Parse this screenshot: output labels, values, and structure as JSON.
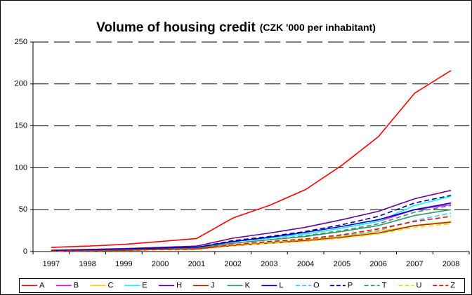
{
  "chart_data": {
    "type": "line",
    "title": "Volume of housing credit",
    "subtitle": "(CZK '000 per inhabitant)",
    "categories": [
      "1997",
      "1998",
      "1999",
      "2000",
      "2001",
      "2002",
      "2003",
      "2004",
      "2005",
      "2006",
      "2007",
      "2008"
    ],
    "ylim": [
      0,
      250
    ],
    "yticks": [
      0,
      50,
      100,
      150,
      200,
      250
    ],
    "grid": true,
    "legend": "bottom",
    "series": [
      {
        "name": "A",
        "color": "#ff0000",
        "style": "solid",
        "values": [
          5,
          6.5,
          8.5,
          12,
          15.5,
          40,
          55,
          74,
          103,
          137,
          189,
          216
        ]
      },
      {
        "name": "B",
        "color": "#ff00ff",
        "style": "solid",
        "values": [
          1,
          2,
          2.5,
          4,
          5,
          12,
          16,
          21,
          28,
          36,
          50,
          56
        ]
      },
      {
        "name": "C",
        "color": "#ffcc00",
        "style": "solid",
        "values": [
          0.5,
          1,
          1.5,
          2.5,
          3,
          8,
          11,
          14,
          18,
          24,
          31,
          36
        ]
      },
      {
        "name": "E",
        "color": "#00ffff",
        "style": "solid",
        "values": [
          1,
          2,
          3,
          4,
          5,
          12,
          16,
          21,
          28,
          36,
          55,
          66
        ]
      },
      {
        "name": "H",
        "color": "#660099",
        "style": "solid",
        "values": [
          1.5,
          2.5,
          3.5,
          5,
          6.5,
          16,
          22,
          29,
          38,
          48,
          63,
          73
        ]
      },
      {
        "name": "J",
        "color": "#993300",
        "style": "solid",
        "values": [
          0.5,
          1,
          1.5,
          2.5,
          3,
          7,
          10,
          13,
          17,
          22,
          31,
          35
        ]
      },
      {
        "name": "K",
        "color": "#339966",
        "style": "solid",
        "values": [
          0.5,
          1,
          2,
          3,
          4,
          10,
          14,
          18,
          24,
          31,
          43,
          50
        ]
      },
      {
        "name": "L",
        "color": "#0000cc",
        "style": "solid",
        "values": [
          1,
          2,
          3,
          4,
          5,
          12,
          17,
          23,
          30,
          38,
          50,
          58
        ]
      },
      {
        "name": "O",
        "color": "#33ccff",
        "style": "dashed",
        "values": [
          0.5,
          1,
          1.5,
          2.5,
          3,
          8,
          11,
          15,
          19,
          25,
          37,
          46
        ]
      },
      {
        "name": "P",
        "color": "#000099",
        "style": "dashed",
        "values": [
          1,
          2,
          3,
          4,
          5,
          13,
          18,
          24,
          32,
          42,
          58,
          67
        ]
      },
      {
        "name": "T",
        "color": "#339966",
        "style": "dashed",
        "values": [
          0.5,
          1,
          2,
          3,
          4,
          10,
          14,
          19,
          25,
          33,
          47,
          55
        ]
      },
      {
        "name": "U",
        "color": "#ffcc00",
        "style": "dashed",
        "values": [
          0.3,
          0.7,
          1,
          2,
          2.5,
          7,
          10,
          12,
          16,
          21,
          29,
          33
        ]
      },
      {
        "name": "Z",
        "color": "#ff0000",
        "style": "dashed",
        "values": [
          0.5,
          1,
          1.5,
          2.5,
          3,
          8,
          12,
          15,
          20,
          27,
          36,
          42
        ]
      }
    ]
  }
}
